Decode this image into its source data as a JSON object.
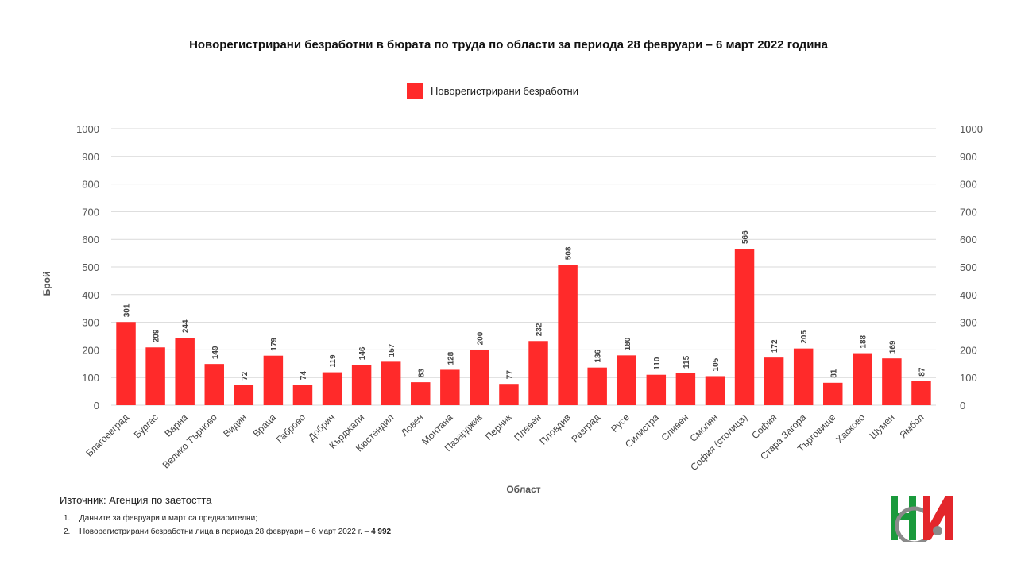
{
  "chart_data": {
    "type": "bar",
    "title": "Новорегистрирани безработни в бюрата по труда по области за периода 28 февруари – 6 март 2022 година",
    "xlabel": "Област",
    "ylabel": "Брой",
    "ylim": [
      0,
      1000
    ],
    "yticks": [
      "0",
      "100",
      "200",
      "300",
      "400",
      "500",
      "600",
      "700",
      "800",
      "900",
      "1000"
    ],
    "grid": true,
    "legend_position": "top-center",
    "series": [
      {
        "name": "Новорегистрирани безработни",
        "color": "#ff2a2a",
        "values": [
          301,
          209,
          244,
          149,
          72,
          179,
          74,
          119,
          146,
          157,
          83,
          128,
          200,
          77,
          232,
          508,
          136,
          180,
          110,
          115,
          105,
          566,
          172,
          205,
          81,
          188,
          169,
          87
        ]
      }
    ],
    "categories": [
      "Благоевград",
      "Бургас",
      "Варна",
      "Велико Търново",
      "Видин",
      "Враца",
      "Габрово",
      "Добрич",
      "Кърджали",
      "Кюстендил",
      "Ловеч",
      "Монтана",
      "Пазарджик",
      "Перник",
      "Плевен",
      "Пловдив",
      "Разград",
      "Русе",
      "Силистра",
      "Сливен",
      "Смолян",
      "София (столица)",
      "София",
      "Стара Загора",
      "Търговище",
      "Хасково",
      "Шумен",
      "Ямбол"
    ]
  },
  "footer": {
    "source": "Източник: Агенция по заетостта",
    "notes": [
      {
        "num": "1.",
        "text": "Данните за февруари и март са предварителни;",
        "bold": ""
      },
      {
        "num": "2.",
        "text": "Новорегистрирани безработни лица в периода 28 февруари – 6 март 2022 г. – ",
        "bold": "4 992"
      }
    ]
  },
  "logo": {
    "colors": {
      "green": "#1a9a3c",
      "red": "#e3262b",
      "gray": "#8a8a8a"
    }
  }
}
